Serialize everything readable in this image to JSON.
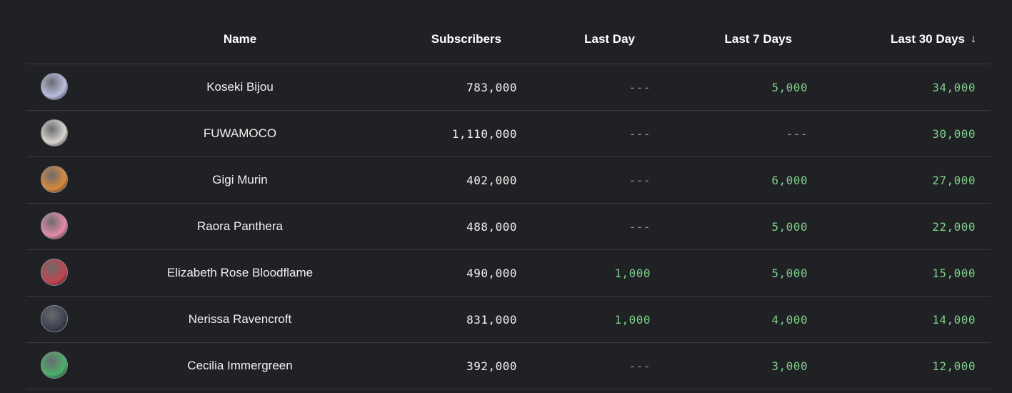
{
  "columns": {
    "name": "Name",
    "subscribers": "Subscribers",
    "last_day": "Last Day",
    "last_7_days": "Last 7 Days",
    "last_30_days": "Last 30 Days",
    "sort_icon": "arrow-down-icon"
  },
  "rows": [
    {
      "name": "Koseki Bijou",
      "subscribers": "783,000",
      "last_day": "---",
      "last_7_days": "5,000",
      "last_30_days": "34,000",
      "avatar_color": "#b9bde0"
    },
    {
      "name": "FUWAMOCO",
      "subscribers": "1,110,000",
      "last_day": "---",
      "last_7_days": "---",
      "last_30_days": "30,000",
      "avatar_color": "#d9d4cf"
    },
    {
      "name": "Gigi Murin",
      "subscribers": "402,000",
      "last_day": "---",
      "last_7_days": "6,000",
      "last_30_days": "27,000",
      "avatar_color": "#d88a3c"
    },
    {
      "name": "Raora Panthera",
      "subscribers": "488,000",
      "last_day": "---",
      "last_7_days": "5,000",
      "last_30_days": "22,000",
      "avatar_color": "#e58aa8"
    },
    {
      "name": "Elizabeth Rose Bloodflame",
      "subscribers": "490,000",
      "last_day": "1,000",
      "last_7_days": "5,000",
      "last_30_days": "15,000",
      "avatar_color": "#c0454f"
    },
    {
      "name": "Nerissa Ravencroft",
      "subscribers": "831,000",
      "last_day": "1,000",
      "last_7_days": "4,000",
      "last_30_days": "14,000",
      "avatar_color": "#3d4050"
    },
    {
      "name": "Cecilia Immergreen",
      "subscribers": "392,000",
      "last_day": "---",
      "last_7_days": "3,000",
      "last_30_days": "12,000",
      "avatar_color": "#4caf6a"
    }
  ],
  "colors": {
    "background": "#202124",
    "positive": "#7fcf8a",
    "neutral": "#9a9ca0",
    "text": "#f1f1f1"
  }
}
